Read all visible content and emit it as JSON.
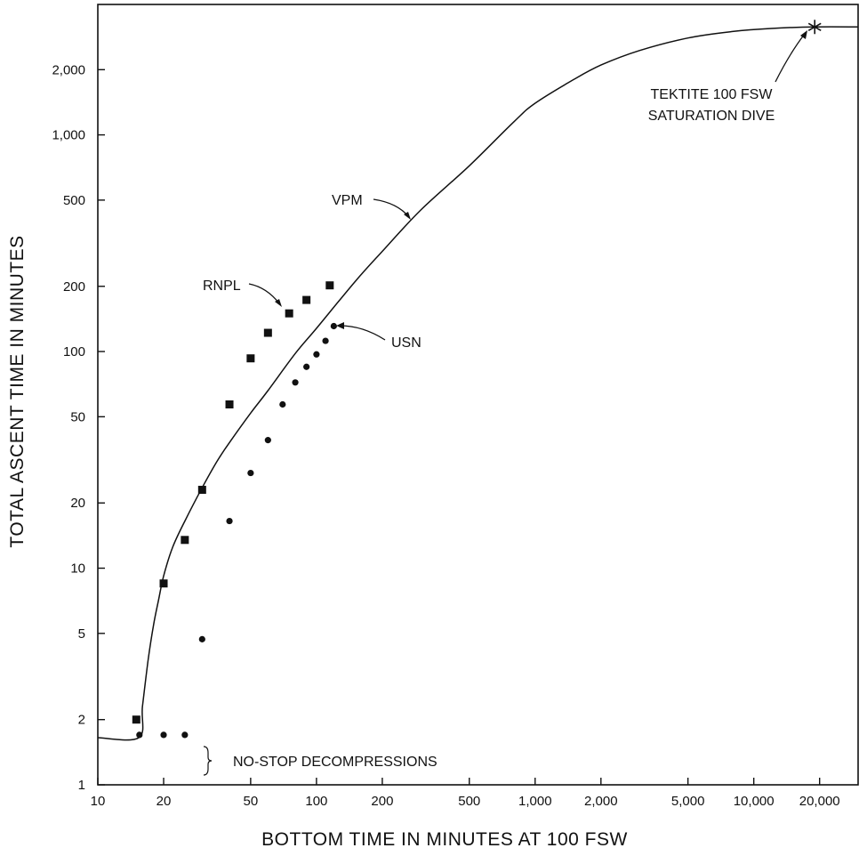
{
  "chart_data": {
    "type": "scatter",
    "title": "",
    "xlabel": "BOTTOM TIME IN MINUTES AT 100 FSW",
    "ylabel": "TOTAL ASCENT TIME IN MINUTES",
    "xscale": "log",
    "yscale": "log",
    "xlim": [
      10,
      30000
    ],
    "ylim": [
      1,
      4000
    ],
    "grid": false,
    "xticks": [
      {
        "v": 10,
        "label": "10"
      },
      {
        "v": 20,
        "label": "20"
      },
      {
        "v": 50,
        "label": "50"
      },
      {
        "v": 100,
        "label": "100"
      },
      {
        "v": 200,
        "label": "200"
      },
      {
        "v": 500,
        "label": "500"
      },
      {
        "v": 1000,
        "label": "1,000"
      },
      {
        "v": 2000,
        "label": "2,000"
      },
      {
        "v": 5000,
        "label": "5,000"
      },
      {
        "v": 10000,
        "label": "10,000"
      },
      {
        "v": 20000,
        "label": "20,000"
      }
    ],
    "yticks": [
      {
        "v": 1,
        "label": "1"
      },
      {
        "v": 2,
        "label": "2"
      },
      {
        "v": 5,
        "label": "5"
      },
      {
        "v": 10,
        "label": "10"
      },
      {
        "v": 20,
        "label": "20"
      },
      {
        "v": 50,
        "label": "50"
      },
      {
        "v": 100,
        "label": "100"
      },
      {
        "v": 200,
        "label": "200"
      },
      {
        "v": 500,
        "label": "500"
      },
      {
        "v": 1000,
        "label": "1,000"
      },
      {
        "v": 2000,
        "label": "2,000"
      }
    ],
    "series": [
      {
        "name": "VPM",
        "kind": "line",
        "points": [
          [
            10,
            1.65
          ],
          [
            15.4,
            1.65
          ],
          [
            16,
            2.3
          ],
          [
            17,
            3.8
          ],
          [
            18,
            5.5
          ],
          [
            19,
            7.2
          ],
          [
            20,
            9.2
          ],
          [
            22,
            12.5
          ],
          [
            25,
            16.5
          ],
          [
            30,
            23.5
          ],
          [
            35,
            31
          ],
          [
            40,
            38
          ],
          [
            50,
            52
          ],
          [
            60,
            66
          ],
          [
            80,
            98
          ],
          [
            100,
            128
          ],
          [
            150,
            210
          ],
          [
            200,
            290
          ],
          [
            300,
            450
          ],
          [
            500,
            720
          ],
          [
            800,
            1150
          ],
          [
            1000,
            1400
          ],
          [
            1500,
            1800
          ],
          [
            2000,
            2100
          ],
          [
            3000,
            2450
          ],
          [
            5000,
            2800
          ],
          [
            8000,
            3000
          ],
          [
            12000,
            3100
          ],
          [
            19000,
            3150
          ],
          [
            30000,
            3150
          ]
        ]
      },
      {
        "name": "RNPL",
        "kind": "square",
        "points": [
          [
            15,
            2
          ],
          [
            20,
            8.5
          ],
          [
            25,
            13.5
          ],
          [
            30,
            23
          ],
          [
            40,
            57
          ],
          [
            50,
            93
          ],
          [
            60,
            122
          ],
          [
            75,
            150
          ],
          [
            90,
            173
          ],
          [
            115,
            202
          ]
        ]
      },
      {
        "name": "USN",
        "kind": "circle",
        "points": [
          [
            15.5,
            1.7
          ],
          [
            20,
            1.7
          ],
          [
            25,
            1.7
          ],
          [
            30,
            4.7
          ],
          [
            40,
            16.5
          ],
          [
            50,
            27.5
          ],
          [
            60,
            39
          ],
          [
            70,
            57
          ],
          [
            80,
            72
          ],
          [
            90,
            85
          ],
          [
            100,
            97
          ],
          [
            110,
            112
          ],
          [
            120,
            131
          ]
        ]
      }
    ],
    "marker_point": {
      "x": 19000,
      "y": 3150
    },
    "annotations": {
      "vpm": "VPM",
      "rnpl": "RNPL",
      "usn": "USN",
      "no_stop": "NO-STOP DECOMPRESSIONS",
      "tektite_line1": "TEKTITE 100 FSW",
      "tektite_line2": "SATURATION DIVE"
    }
  }
}
